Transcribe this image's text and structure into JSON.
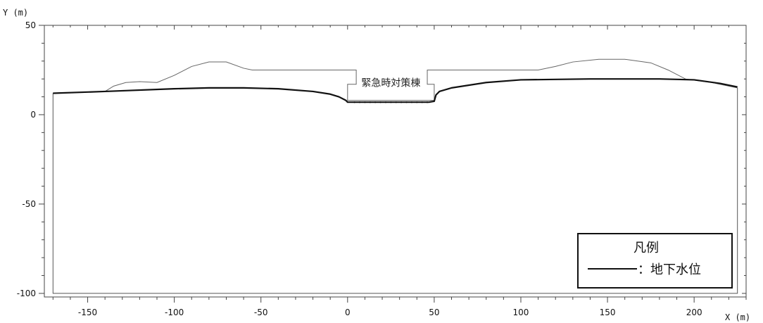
{
  "chart_data": {
    "type": "line",
    "xlabel": "X (m)",
    "ylabel": "Y (m)",
    "xlim": [
      -175,
      230
    ],
    "ylim": [
      -102,
      50
    ],
    "x_ticks": [
      -150,
      -100,
      -50,
      0,
      50,
      100,
      150,
      200
    ],
    "y_ticks": [
      50,
      0,
      -50,
      -100
    ],
    "building_label": "緊急時対策棟",
    "legend": {
      "title": "凡例",
      "entry": "：地下水位"
    },
    "model_boundary": [
      [
        -170,
        12
      ],
      [
        -170,
        -100
      ],
      [
        225,
        -100
      ],
      [
        225,
        15
      ]
    ],
    "ground_surface": [
      [
        -170,
        12
      ],
      [
        -140,
        13
      ],
      [
        -135,
        16
      ],
      [
        -128,
        18
      ],
      [
        -120,
        18.5
      ],
      [
        -110,
        18
      ],
      [
        -100,
        22
      ],
      [
        -90,
        27
      ],
      [
        -80,
        29.5
      ],
      [
        -70,
        29.5
      ],
      [
        -60,
        26
      ],
      [
        -55,
        25
      ],
      [
        5,
        25
      ],
      [
        5,
        17
      ],
      [
        0,
        17
      ],
      [
        0,
        8
      ],
      [
        50,
        8
      ],
      [
        50,
        17
      ],
      [
        46,
        17
      ],
      [
        46,
        25
      ],
      [
        110,
        25
      ],
      [
        120,
        27
      ],
      [
        130,
        29.5
      ],
      [
        145,
        31
      ],
      [
        160,
        31
      ],
      [
        175,
        29
      ],
      [
        185,
        25
      ],
      [
        195,
        20
      ],
      [
        210,
        18
      ],
      [
        225,
        15
      ]
    ],
    "series": [
      {
        "name": "地下水位",
        "x": [
          -170,
          -140,
          -100,
          -80,
          -60,
          -40,
          -20,
          -10,
          -5,
          -1,
          0,
          2,
          10,
          20,
          30,
          40,
          47,
          50,
          51,
          53,
          60,
          80,
          100,
          140,
          180,
          200,
          215,
          225
        ],
        "y": [
          12,
          13,
          14.5,
          15,
          15,
          14.5,
          13,
          11.5,
          10,
          8,
          7,
          7,
          7,
          7,
          7,
          7,
          7,
          7.5,
          11,
          13,
          15,
          18,
          19.5,
          20,
          20,
          19.5,
          17.5,
          15.5
        ]
      }
    ]
  }
}
